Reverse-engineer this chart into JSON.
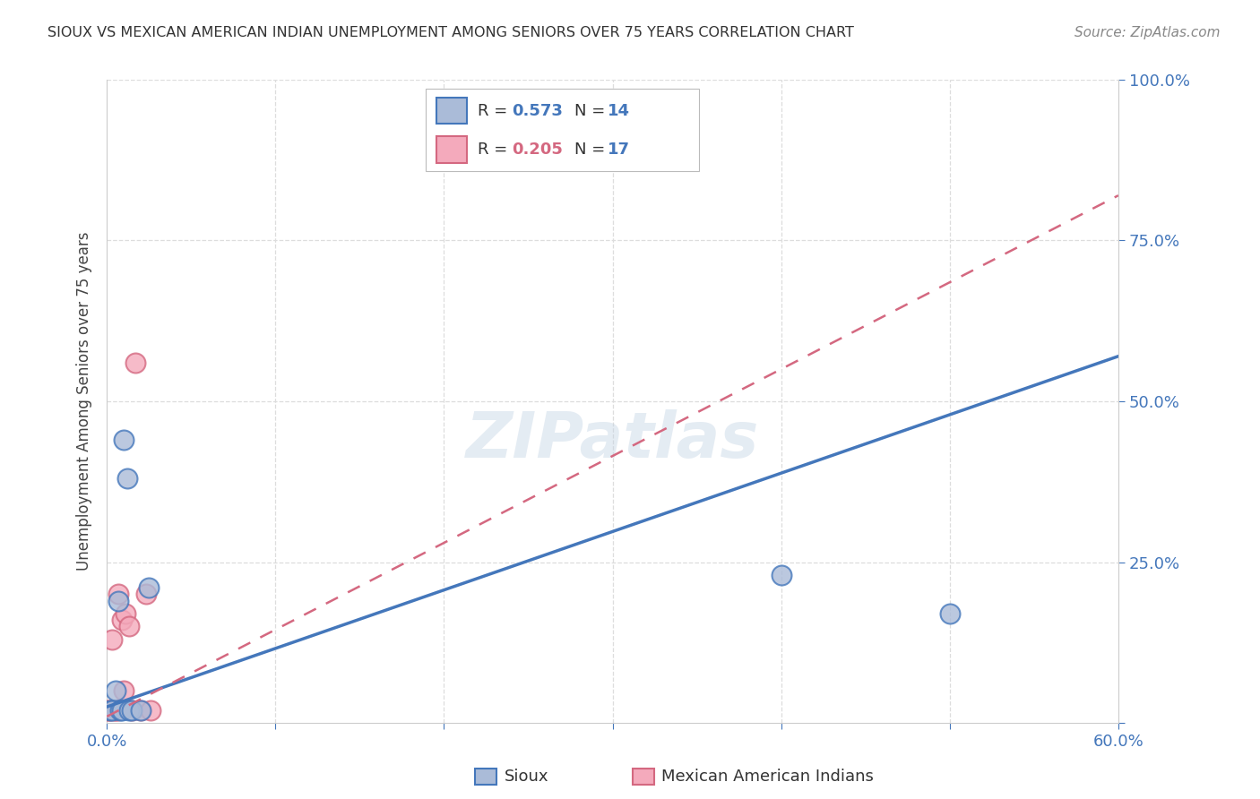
{
  "title": "SIOUX VS MEXICAN AMERICAN INDIAN UNEMPLOYMENT AMONG SENIORS OVER 75 YEARS CORRELATION CHART",
  "source": "Source: ZipAtlas.com",
  "ylabel": "Unemployment Among Seniors over 75 years",
  "watermark": "ZIPatlas",
  "xlim": [
    0.0,
    0.6
  ],
  "ylim": [
    0.0,
    1.0
  ],
  "xticks": [
    0.0,
    0.1,
    0.2,
    0.3,
    0.4,
    0.5,
    0.6
  ],
  "xticklabels": [
    "0.0%",
    "",
    "",
    "",
    "",
    "",
    "60.0%"
  ],
  "yticks": [
    0.0,
    0.25,
    0.5,
    0.75,
    1.0
  ],
  "ytick_right_labels": [
    "",
    "25.0%",
    "50.0%",
    "75.0%",
    "100.0%"
  ],
  "sioux_R": "0.573",
  "sioux_N": "14",
  "mexican_R": "0.205",
  "mexican_N": "17",
  "sioux_face_color": "#AABBD8",
  "sioux_edge_color": "#4477BB",
  "mexican_face_color": "#F4AABC",
  "mexican_edge_color": "#D46880",
  "sioux_line_color": "#4477BB",
  "mexican_line_color": "#D46880",
  "tick_color": "#4477BB",
  "sioux_x": [
    0.002,
    0.003,
    0.005,
    0.007,
    0.008,
    0.009,
    0.01,
    0.012,
    0.013,
    0.015,
    0.02,
    0.025,
    0.4,
    0.5
  ],
  "sioux_y": [
    0.02,
    0.02,
    0.05,
    0.19,
    0.02,
    0.02,
    0.44,
    0.38,
    0.02,
    0.02,
    0.02,
    0.21,
    0.23,
    0.17
  ],
  "mexican_x": [
    0.0,
    0.001,
    0.002,
    0.003,
    0.004,
    0.005,
    0.006,
    0.007,
    0.009,
    0.01,
    0.011,
    0.013,
    0.015,
    0.017,
    0.02,
    0.023,
    0.026
  ],
  "mexican_y": [
    0.02,
    0.02,
    0.02,
    0.13,
    0.02,
    0.02,
    0.02,
    0.2,
    0.16,
    0.05,
    0.17,
    0.15,
    0.02,
    0.56,
    0.02,
    0.2,
    0.02
  ],
  "sioux_regline_x": [
    0.0,
    0.6
  ],
  "sioux_regline_y": [
    0.025,
    0.57
  ],
  "mexican_regline_x": [
    0.0,
    0.6
  ],
  "mexican_regline_y": [
    0.01,
    0.82
  ],
  "dot_size": 250,
  "background_color": "#FFFFFF",
  "grid_color": "#DDDDDD"
}
